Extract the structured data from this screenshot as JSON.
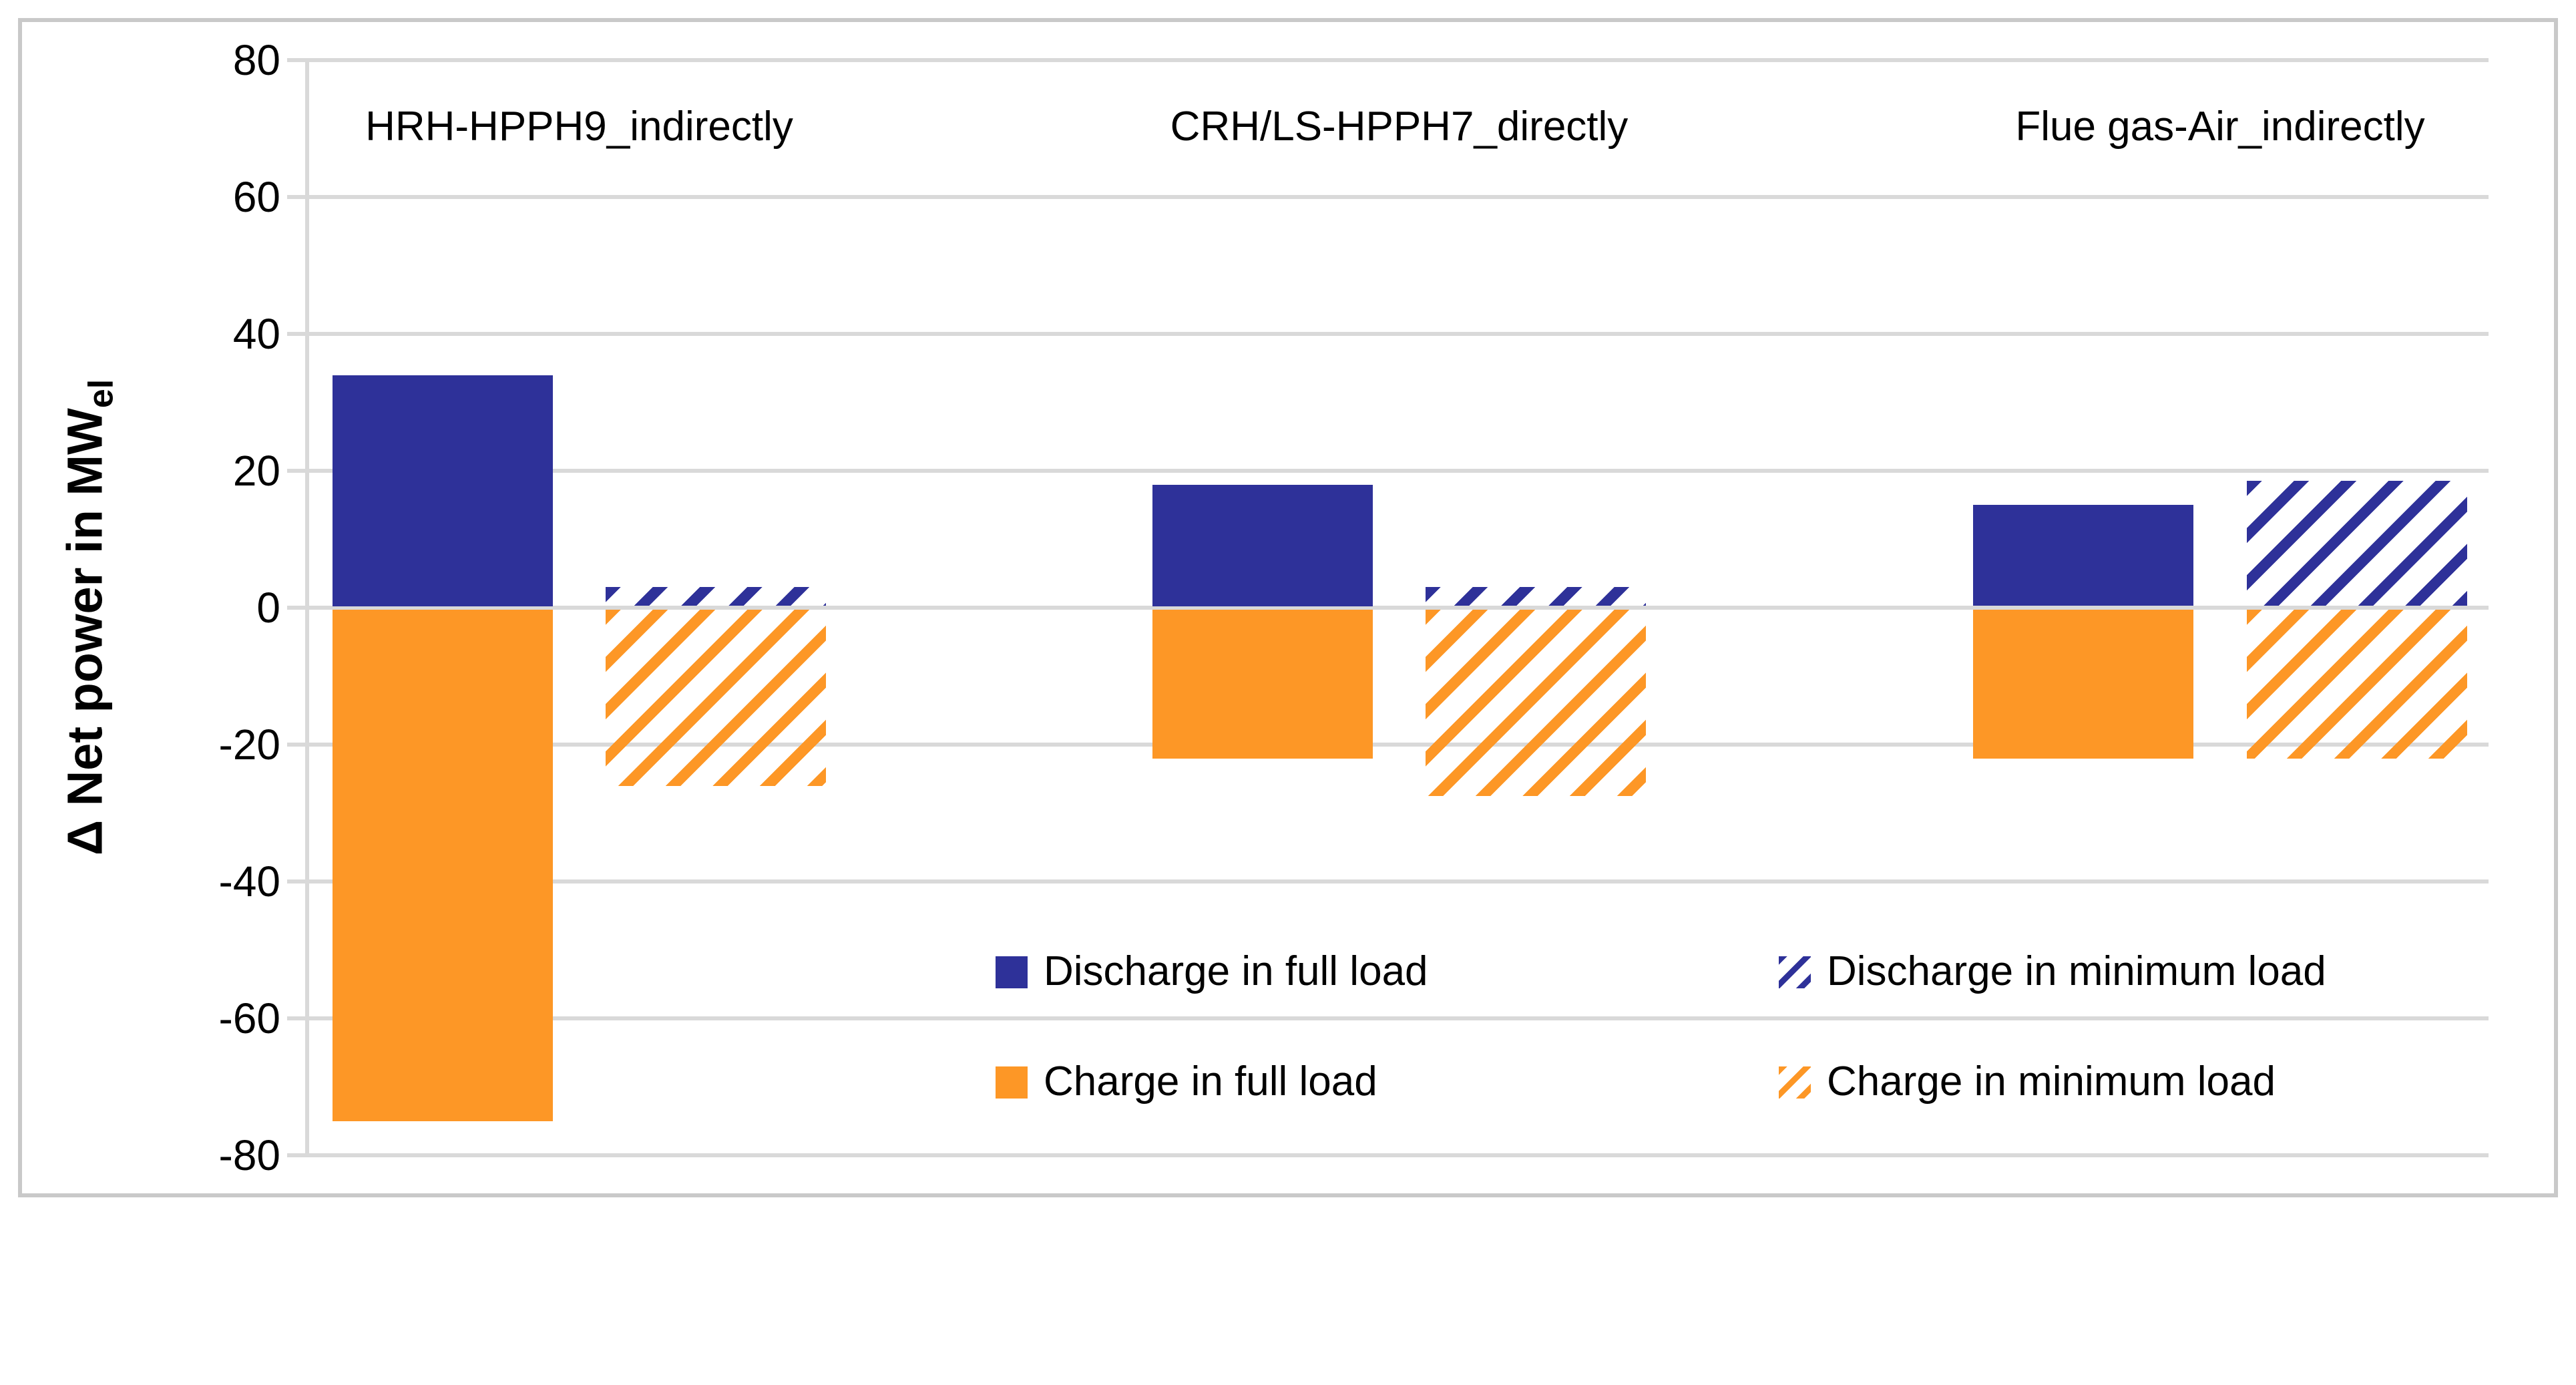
{
  "figure": {
    "background": "#ffffff",
    "border_color": "#c9c9c9",
    "gridline_color": "#d9d9d9"
  },
  "colors": {
    "discharge_blue": "#2E3199",
    "charge_orange": "#FD9726"
  },
  "y_axis": {
    "title_main": "Δ Net power in MW",
    "title_sub": "el",
    "tick_labels": [
      "80",
      "60",
      "40",
      "20",
      "0",
      "-20",
      "-40",
      "-60",
      "-80"
    ]
  },
  "chart_data": {
    "type": "bar",
    "categories": [
      "HRH-HPPH9_indirectly",
      "CRH/LS-HPPH7_directly",
      "Flue gas-Air_indirectly"
    ],
    "series": [
      {
        "name": "Discharge in full load",
        "style": "solid",
        "colorKey": "discharge_blue",
        "values": [
          34,
          18,
          15
        ]
      },
      {
        "name": "Charge in full load",
        "style": "solid",
        "colorKey": "charge_orange",
        "values": [
          -75,
          -22,
          -22
        ]
      },
      {
        "name": "Discharge in minimum load",
        "style": "hatch",
        "colorKey": "discharge_blue",
        "values": [
          3,
          3,
          18.5
        ]
      },
      {
        "name": "Charge in minimum load",
        "style": "hatch",
        "colorKey": "charge_orange",
        "values": [
          -26,
          -27.5,
          -22
        ]
      }
    ],
    "ylabel": "Δ Net power in MW_el",
    "xlabel": "",
    "ylim": [
      -80,
      80
    ],
    "ytick_step": 20,
    "grid": true,
    "legend_position": "inside-bottom"
  },
  "legend": {
    "items": [
      {
        "row": 0,
        "col": 0,
        "style": "solid",
        "colorKey": "discharge_blue",
        "label": "Discharge in full load"
      },
      {
        "row": 0,
        "col": 1,
        "style": "hatch",
        "colorKey": "discharge_blue",
        "label": "Discharge in minimum load"
      },
      {
        "row": 1,
        "col": 0,
        "style": "solid",
        "colorKey": "charge_orange",
        "label": "Charge in full load"
      },
      {
        "row": 1,
        "col": 1,
        "style": "hatch",
        "colorKey": "charge_orange",
        "label": "Charge in minimum load"
      }
    ]
  }
}
